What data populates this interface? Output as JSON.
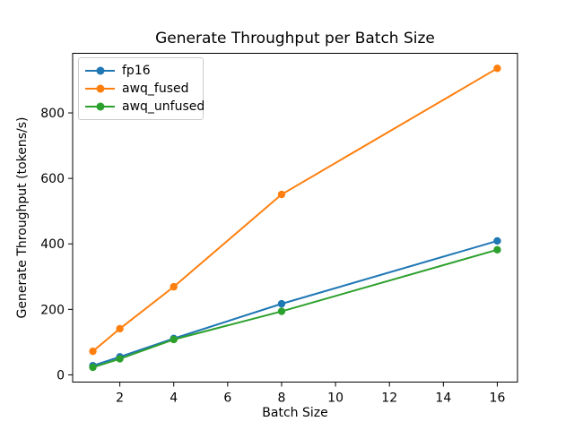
{
  "window": {
    "background": "#ffffff"
  },
  "chart_data": {
    "type": "line",
    "title": "Generate Throughput per Batch Size",
    "xlabel": "Batch Size",
    "ylabel": "Generate Throughput (tokens/s)",
    "x": [
      1,
      2,
      4,
      8,
      16
    ],
    "series": [
      {
        "name": "fp16",
        "color": "#1f77b4",
        "values": [
          28,
          55,
          111,
          217,
          409
        ]
      },
      {
        "name": "awq_fused",
        "color": "#ff7f0e",
        "values": [
          72,
          141,
          269,
          551,
          936
        ]
      },
      {
        "name": "awq_unfused",
        "color": "#2ca02c",
        "values": [
          23,
          49,
          108,
          194,
          382
        ]
      }
    ],
    "xlim": [
      0.25,
      16.75
    ],
    "ylim": [
      -22,
      982
    ],
    "xticks": [
      2,
      4,
      6,
      8,
      10,
      12,
      14,
      16
    ],
    "yticks": [
      0,
      200,
      400,
      600,
      800
    ],
    "grid": false,
    "legend_position": "upper-left",
    "marker": "o",
    "axes_color": "#000000",
    "tick_label_color": "#000000",
    "legend_border_color": "#cccccc"
  }
}
